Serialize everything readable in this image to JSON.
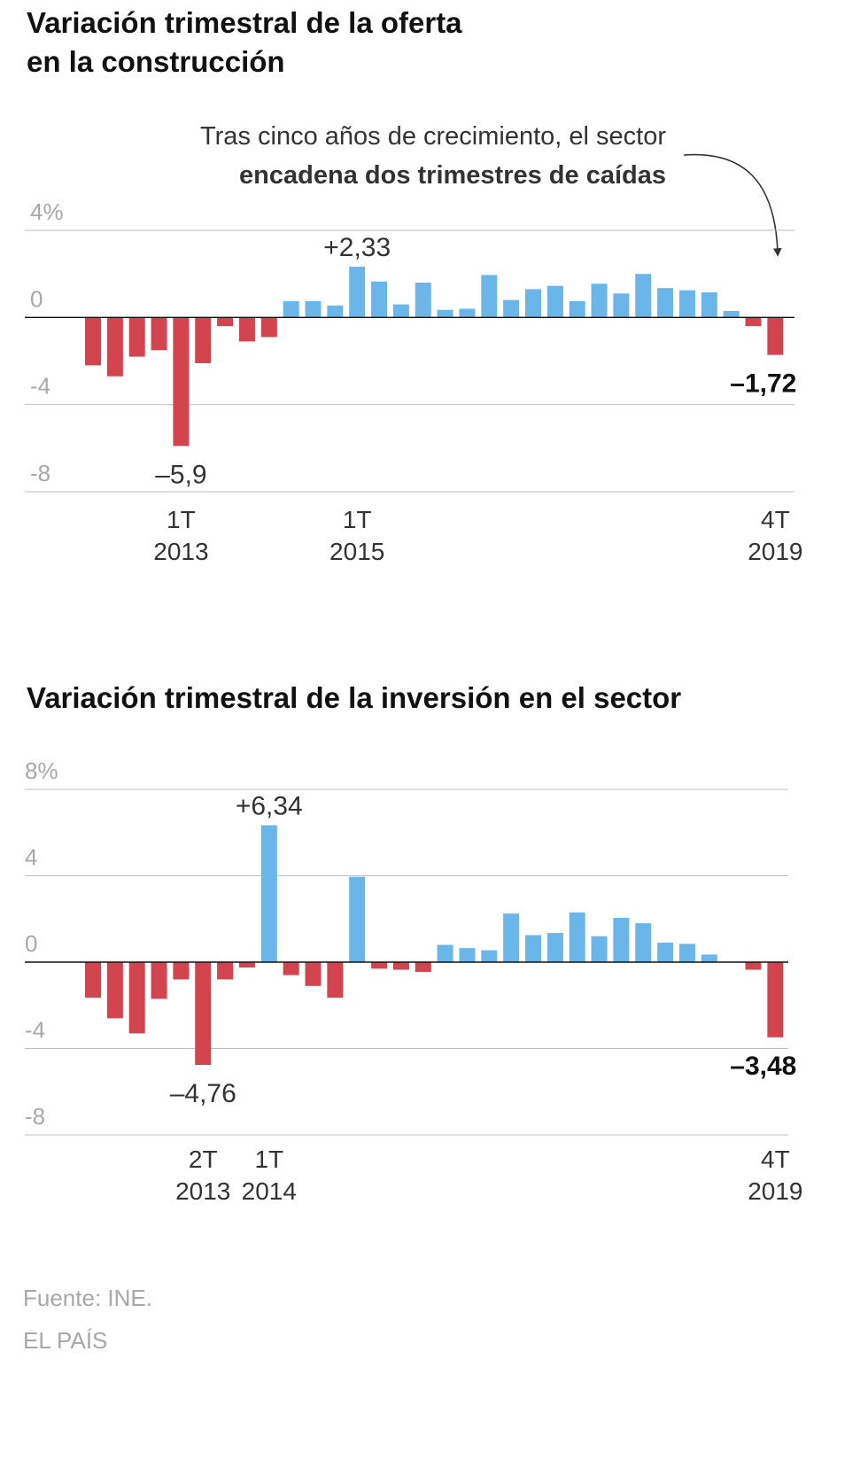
{
  "chart1": {
    "title_lines": [
      "Variación trimestral de la oferta",
      "en la construcción"
    ],
    "annotation": {
      "line1": "Tras cinco años de crecimiento, el sector",
      "line2": "encadena dos trimestres de caídas"
    }
  },
  "chart2": {
    "title": "Variación trimestral de la inversión en el sector"
  },
  "footer": {
    "source": "Fuente: INE.",
    "brand": "EL PAÍS"
  },
  "colors": {
    "positive": "#6bb6e8",
    "negative": "#d4444f",
    "grid": "#bfbfbf",
    "zero_line": "#111111",
    "axis_text": "#a8a8a8",
    "label_text": "#333333"
  },
  "chart_data": [
    {
      "type": "bar",
      "title": "Variación trimestral de la oferta en la construcción",
      "unit": "%",
      "ylim": [
        -8,
        4
      ],
      "yticks": [
        4,
        0,
        -4,
        -8
      ],
      "ytick_labels": [
        "4%",
        "0",
        "-4",
        "-8"
      ],
      "values": [
        -2.2,
        -2.7,
        -1.8,
        -1.5,
        -5.9,
        -2.1,
        -0.4,
        -1.1,
        -0.9,
        0.75,
        0.75,
        0.55,
        2.33,
        1.65,
        0.6,
        1.6,
        0.35,
        0.4,
        1.95,
        0.8,
        1.3,
        1.45,
        0.75,
        1.55,
        1.1,
        2.0,
        1.35,
        1.25,
        1.15,
        0.3,
        -0.4,
        -1.72
      ],
      "x_labels": [
        {
          "index": 4,
          "line1": "1T",
          "line2": "2013"
        },
        {
          "index": 12,
          "line1": "1T",
          "line2": "2015"
        },
        {
          "index": 31,
          "line1": "4T",
          "line2": "2019"
        }
      ],
      "data_labels": [
        {
          "index": 4,
          "text": "–5,9",
          "bold": false
        },
        {
          "index": 12,
          "text": "+2,33",
          "bold": false
        },
        {
          "index": 31,
          "text": "–1,72",
          "bold": true
        }
      ]
    },
    {
      "type": "bar",
      "title": "Variación trimestral de la inversión en el sector",
      "unit": "%",
      "ylim": [
        -8,
        8
      ],
      "yticks": [
        8,
        4,
        0,
        -4,
        -8
      ],
      "ytick_labels": [
        "8%",
        "4",
        "0",
        "-4",
        "-8"
      ],
      "values": [
        -1.65,
        -2.6,
        -3.3,
        -1.7,
        -0.8,
        -4.76,
        -0.8,
        -0.25,
        6.34,
        -0.6,
        -1.1,
        -1.65,
        3.95,
        -0.3,
        -0.35,
        -0.45,
        0.8,
        0.65,
        0.55,
        2.25,
        1.25,
        1.35,
        2.3,
        1.2,
        2.05,
        1.8,
        0.9,
        0.85,
        0.35,
        0.0,
        -0.35,
        -3.48
      ],
      "x_labels": [
        {
          "index": 5,
          "line1": "2T",
          "line2": "2013"
        },
        {
          "index": 8,
          "line1": "1T",
          "line2": "2014"
        },
        {
          "index": 31,
          "line1": "4T",
          "line2": "2019"
        }
      ],
      "data_labels": [
        {
          "index": 5,
          "text": "–4,76",
          "bold": false
        },
        {
          "index": 8,
          "text": "+6,34",
          "bold": false
        },
        {
          "index": 31,
          "text": "–3,48",
          "bold": true
        }
      ]
    }
  ]
}
